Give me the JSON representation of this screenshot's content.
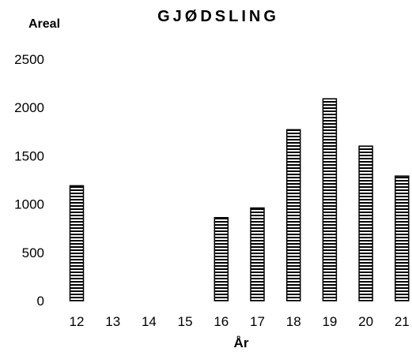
{
  "chart_data": {
    "type": "bar",
    "title": "GJØDSLING",
    "xlabel": "År",
    "ylabel": "Areal",
    "categories": [
      "12",
      "13",
      "14",
      "15",
      "16",
      "17",
      "18",
      "19",
      "20",
      "21"
    ],
    "values": [
      1190,
      0,
      0,
      0,
      860,
      960,
      1770,
      2090,
      1600,
      1290
    ],
    "ylim": [
      0,
      2500
    ],
    "yticks": [
      "0",
      "500",
      "1000",
      "1500",
      "2000",
      "2500"
    ],
    "grid": false,
    "legend": "none",
    "colors": {
      "bar_fill": "#ffffff",
      "bar_stripe": "#000000",
      "text": "#000000"
    }
  }
}
